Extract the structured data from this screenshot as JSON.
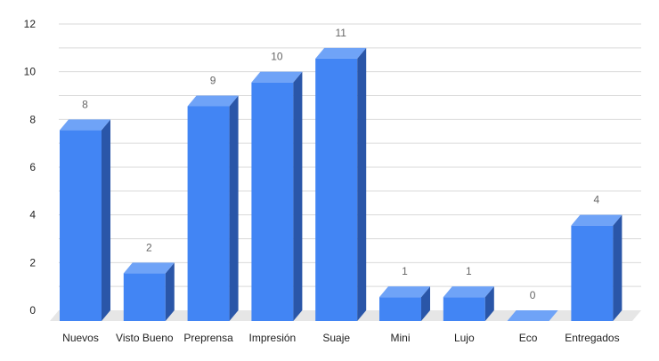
{
  "chart_data": {
    "type": "bar",
    "style": "3d-column",
    "categories": [
      "Nuevos",
      "Visto Bueno",
      "Preprensa",
      "Impresión",
      "Suaje",
      "Mini",
      "Lujo",
      "Eco",
      "Entregados"
    ],
    "values": [
      8,
      2,
      9,
      10,
      11,
      1,
      1,
      0,
      4
    ],
    "data_labels": [
      "8",
      "2",
      "9",
      "10",
      "11",
      "1",
      "1",
      "0",
      "4"
    ],
    "ylim": [
      0,
      12
    ],
    "yticks": [
      "0",
      "2",
      "4",
      "6",
      "8",
      "10",
      "12"
    ],
    "grid": true,
    "legend": "none",
    "colors": {
      "bar_front": "#4285f4",
      "bar_top": "#6fa3f7",
      "bar_side": "#2a56a8",
      "floor": "#e6e6e6",
      "grid": "#d9d9d9"
    }
  }
}
